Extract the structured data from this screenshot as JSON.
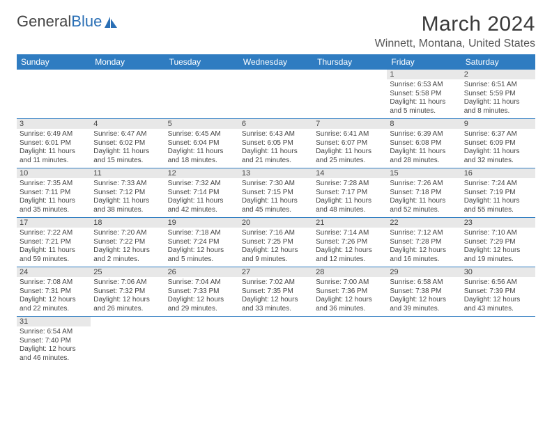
{
  "header": {
    "logo_general": "General",
    "logo_blue": "Blue",
    "month_title": "March 2024",
    "location": "Winnett, Montana, United States"
  },
  "colors": {
    "header_bg": "#2f7cc1",
    "daynum_bg": "#e8e8e8",
    "rule": "#2f7cc1",
    "logo_blue": "#2a6fb5"
  },
  "weekdays": [
    "Sunday",
    "Monday",
    "Tuesday",
    "Wednesday",
    "Thursday",
    "Friday",
    "Saturday"
  ],
  "weeks": [
    [
      {
        "n": "",
        "sr": "",
        "ss": "",
        "dl": ""
      },
      {
        "n": "",
        "sr": "",
        "ss": "",
        "dl": ""
      },
      {
        "n": "",
        "sr": "",
        "ss": "",
        "dl": ""
      },
      {
        "n": "",
        "sr": "",
        "ss": "",
        "dl": ""
      },
      {
        "n": "",
        "sr": "",
        "ss": "",
        "dl": ""
      },
      {
        "n": "1",
        "sr": "Sunrise: 6:53 AM",
        "ss": "Sunset: 5:58 PM",
        "dl": "Daylight: 11 hours and 5 minutes."
      },
      {
        "n": "2",
        "sr": "Sunrise: 6:51 AM",
        "ss": "Sunset: 5:59 PM",
        "dl": "Daylight: 11 hours and 8 minutes."
      }
    ],
    [
      {
        "n": "3",
        "sr": "Sunrise: 6:49 AM",
        "ss": "Sunset: 6:01 PM",
        "dl": "Daylight: 11 hours and 11 minutes."
      },
      {
        "n": "4",
        "sr": "Sunrise: 6:47 AM",
        "ss": "Sunset: 6:02 PM",
        "dl": "Daylight: 11 hours and 15 minutes."
      },
      {
        "n": "5",
        "sr": "Sunrise: 6:45 AM",
        "ss": "Sunset: 6:04 PM",
        "dl": "Daylight: 11 hours and 18 minutes."
      },
      {
        "n": "6",
        "sr": "Sunrise: 6:43 AM",
        "ss": "Sunset: 6:05 PM",
        "dl": "Daylight: 11 hours and 21 minutes."
      },
      {
        "n": "7",
        "sr": "Sunrise: 6:41 AM",
        "ss": "Sunset: 6:07 PM",
        "dl": "Daylight: 11 hours and 25 minutes."
      },
      {
        "n": "8",
        "sr": "Sunrise: 6:39 AM",
        "ss": "Sunset: 6:08 PM",
        "dl": "Daylight: 11 hours and 28 minutes."
      },
      {
        "n": "9",
        "sr": "Sunrise: 6:37 AM",
        "ss": "Sunset: 6:09 PM",
        "dl": "Daylight: 11 hours and 32 minutes."
      }
    ],
    [
      {
        "n": "10",
        "sr": "Sunrise: 7:35 AM",
        "ss": "Sunset: 7:11 PM",
        "dl": "Daylight: 11 hours and 35 minutes."
      },
      {
        "n": "11",
        "sr": "Sunrise: 7:33 AM",
        "ss": "Sunset: 7:12 PM",
        "dl": "Daylight: 11 hours and 38 minutes."
      },
      {
        "n": "12",
        "sr": "Sunrise: 7:32 AM",
        "ss": "Sunset: 7:14 PM",
        "dl": "Daylight: 11 hours and 42 minutes."
      },
      {
        "n": "13",
        "sr": "Sunrise: 7:30 AM",
        "ss": "Sunset: 7:15 PM",
        "dl": "Daylight: 11 hours and 45 minutes."
      },
      {
        "n": "14",
        "sr": "Sunrise: 7:28 AM",
        "ss": "Sunset: 7:17 PM",
        "dl": "Daylight: 11 hours and 48 minutes."
      },
      {
        "n": "15",
        "sr": "Sunrise: 7:26 AM",
        "ss": "Sunset: 7:18 PM",
        "dl": "Daylight: 11 hours and 52 minutes."
      },
      {
        "n": "16",
        "sr": "Sunrise: 7:24 AM",
        "ss": "Sunset: 7:19 PM",
        "dl": "Daylight: 11 hours and 55 minutes."
      }
    ],
    [
      {
        "n": "17",
        "sr": "Sunrise: 7:22 AM",
        "ss": "Sunset: 7:21 PM",
        "dl": "Daylight: 11 hours and 59 minutes."
      },
      {
        "n": "18",
        "sr": "Sunrise: 7:20 AM",
        "ss": "Sunset: 7:22 PM",
        "dl": "Daylight: 12 hours and 2 minutes."
      },
      {
        "n": "19",
        "sr": "Sunrise: 7:18 AM",
        "ss": "Sunset: 7:24 PM",
        "dl": "Daylight: 12 hours and 5 minutes."
      },
      {
        "n": "20",
        "sr": "Sunrise: 7:16 AM",
        "ss": "Sunset: 7:25 PM",
        "dl": "Daylight: 12 hours and 9 minutes."
      },
      {
        "n": "21",
        "sr": "Sunrise: 7:14 AM",
        "ss": "Sunset: 7:26 PM",
        "dl": "Daylight: 12 hours and 12 minutes."
      },
      {
        "n": "22",
        "sr": "Sunrise: 7:12 AM",
        "ss": "Sunset: 7:28 PM",
        "dl": "Daylight: 12 hours and 16 minutes."
      },
      {
        "n": "23",
        "sr": "Sunrise: 7:10 AM",
        "ss": "Sunset: 7:29 PM",
        "dl": "Daylight: 12 hours and 19 minutes."
      }
    ],
    [
      {
        "n": "24",
        "sr": "Sunrise: 7:08 AM",
        "ss": "Sunset: 7:31 PM",
        "dl": "Daylight: 12 hours and 22 minutes."
      },
      {
        "n": "25",
        "sr": "Sunrise: 7:06 AM",
        "ss": "Sunset: 7:32 PM",
        "dl": "Daylight: 12 hours and 26 minutes."
      },
      {
        "n": "26",
        "sr": "Sunrise: 7:04 AM",
        "ss": "Sunset: 7:33 PM",
        "dl": "Daylight: 12 hours and 29 minutes."
      },
      {
        "n": "27",
        "sr": "Sunrise: 7:02 AM",
        "ss": "Sunset: 7:35 PM",
        "dl": "Daylight: 12 hours and 33 minutes."
      },
      {
        "n": "28",
        "sr": "Sunrise: 7:00 AM",
        "ss": "Sunset: 7:36 PM",
        "dl": "Daylight: 12 hours and 36 minutes."
      },
      {
        "n": "29",
        "sr": "Sunrise: 6:58 AM",
        "ss": "Sunset: 7:38 PM",
        "dl": "Daylight: 12 hours and 39 minutes."
      },
      {
        "n": "30",
        "sr": "Sunrise: 6:56 AM",
        "ss": "Sunset: 7:39 PM",
        "dl": "Daylight: 12 hours and 43 minutes."
      }
    ],
    [
      {
        "n": "31",
        "sr": "Sunrise: 6:54 AM",
        "ss": "Sunset: 7:40 PM",
        "dl": "Daylight: 12 hours and 46 minutes."
      },
      {
        "n": "",
        "sr": "",
        "ss": "",
        "dl": ""
      },
      {
        "n": "",
        "sr": "",
        "ss": "",
        "dl": ""
      },
      {
        "n": "",
        "sr": "",
        "ss": "",
        "dl": ""
      },
      {
        "n": "",
        "sr": "",
        "ss": "",
        "dl": ""
      },
      {
        "n": "",
        "sr": "",
        "ss": "",
        "dl": ""
      },
      {
        "n": "",
        "sr": "",
        "ss": "",
        "dl": ""
      }
    ]
  ]
}
